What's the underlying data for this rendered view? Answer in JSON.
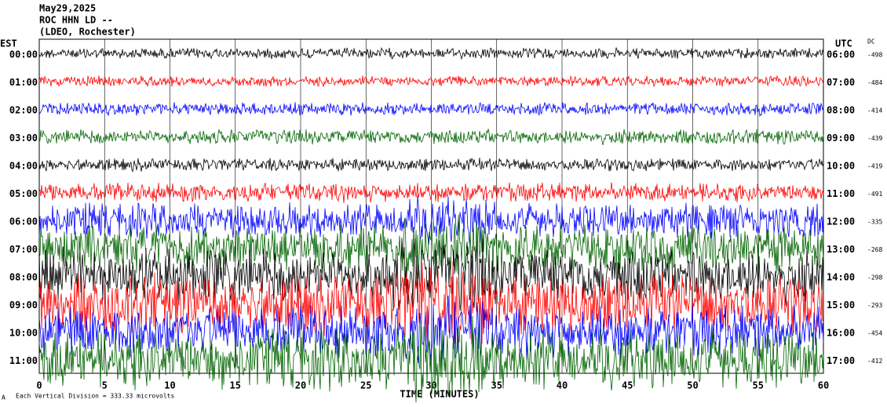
{
  "chart_data": {
    "type": "helicorder",
    "title": "May29,2025",
    "subtitle": "ROC HHN LD --",
    "source": "(LDEO, Rochester)",
    "left_axis_label": "EST",
    "right_axis_label": "UTC",
    "dc_label": "DC",
    "x_label": "TIME (MINUTES)",
    "scale_note": "Each Vertical Division = 333.33 microvolts",
    "xlim": [
      0,
      60
    ],
    "xticks": [
      0,
      5,
      10,
      15,
      20,
      25,
      30,
      35,
      40,
      45,
      50,
      55,
      60
    ],
    "grid": true,
    "colors": [
      "#000000",
      "#ff0000",
      "#0000ff",
      "#006400"
    ],
    "rows": [
      {
        "est": "00:00",
        "utc": "06:00",
        "dc": -498
      },
      {
        "est": "01:00",
        "utc": "07:00",
        "dc": -484
      },
      {
        "est": "02:00",
        "utc": "08:00",
        "dc": -414
      },
      {
        "est": "03:00",
        "utc": "09:00",
        "dc": -439
      },
      {
        "est": "04:00",
        "utc": "10:00",
        "dc": -419
      },
      {
        "est": "05:00",
        "utc": "11:00",
        "dc": -491
      },
      {
        "est": "06:00",
        "utc": "12:00",
        "dc": -335
      },
      {
        "est": "07:00",
        "utc": "13:00",
        "dc": -268
      },
      {
        "est": "08:00",
        "utc": "14:00",
        "dc": -298
      },
      {
        "est": "09:00",
        "utc": "15:00",
        "dc": -293
      },
      {
        "est": "10:00",
        "utc": "16:00",
        "dc": -454
      },
      {
        "est": "11:00",
        "utc": "17:00",
        "dc": -412
      }
    ]
  }
}
